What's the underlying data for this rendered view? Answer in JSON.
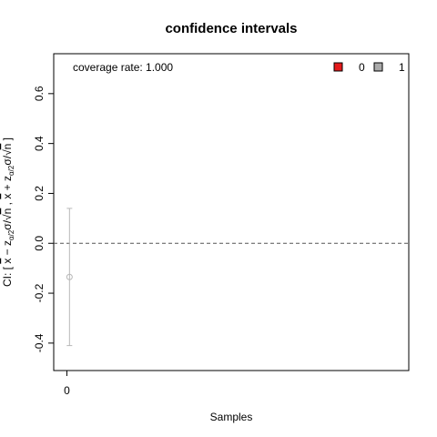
{
  "chart_data": {
    "type": "errorbar",
    "title": "confidence intervals",
    "xlabel": "Samples",
    "ylabel_parts": {
      "prefix": "CI: [ ",
      "xbar1": "x",
      "minus": " − z",
      "sub1": "α/2",
      "sigma1": "σ/√",
      "n1": "n",
      "comma": " , ",
      "xbar2": "x",
      "plus": " + z",
      "sub2": "α/2",
      "sigma2": "σ/√",
      "n2": "n",
      "suffix": " ]"
    },
    "annotation": "coverage rate: 1.000",
    "x_ticks": [
      0
    ],
    "x_tick_labels": [
      "0"
    ],
    "xlim": [
      -0.5,
      13
    ],
    "y_ticks": [
      -0.4,
      -0.2,
      0.0,
      0.2,
      0.4,
      0.6
    ],
    "y_tick_labels": [
      "-0.4",
      "-0.2",
      "0.0",
      "0.2",
      "0.4",
      "0.6"
    ],
    "ylim": [
      -0.51,
      0.76
    ],
    "reference_line": 0,
    "points": [
      {
        "x": 0.1,
        "estimate": -0.135,
        "lower": -0.41,
        "upper": 0.14,
        "covers": 1
      }
    ],
    "legend": {
      "position": "top-right",
      "entries": [
        {
          "label": "0",
          "color": "#e41a1c"
        },
        {
          "label": "1",
          "color": "#aaaaaa"
        }
      ]
    },
    "colors": {
      "covered": "#b8b8b8",
      "reference": "#555555"
    }
  }
}
